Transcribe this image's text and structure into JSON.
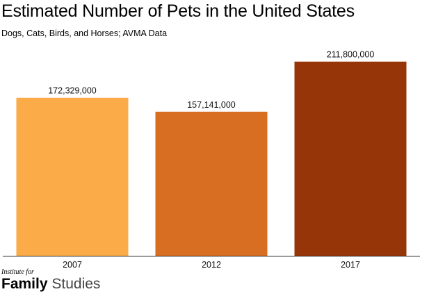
{
  "chart_data": {
    "type": "bar",
    "title": "Estimated Number of Pets in the United States",
    "subtitle": "Dogs, Cats, Birds, and Horses; AVMA Data",
    "categories": [
      "2007",
      "2012",
      "2017"
    ],
    "values": [
      172329000,
      157141000,
      211800000
    ],
    "value_labels": [
      "172,329,000",
      "157,141,000",
      "211,800,000"
    ],
    "colors": [
      "#FBAB47",
      "#D86E22",
      "#963507"
    ],
    "xlabel": "",
    "ylabel": "",
    "ylim": [
      0,
      229000000
    ],
    "grid": false
  },
  "logo": {
    "line1": "Institute for",
    "line2a": "Family",
    "line2b": "Studies"
  }
}
